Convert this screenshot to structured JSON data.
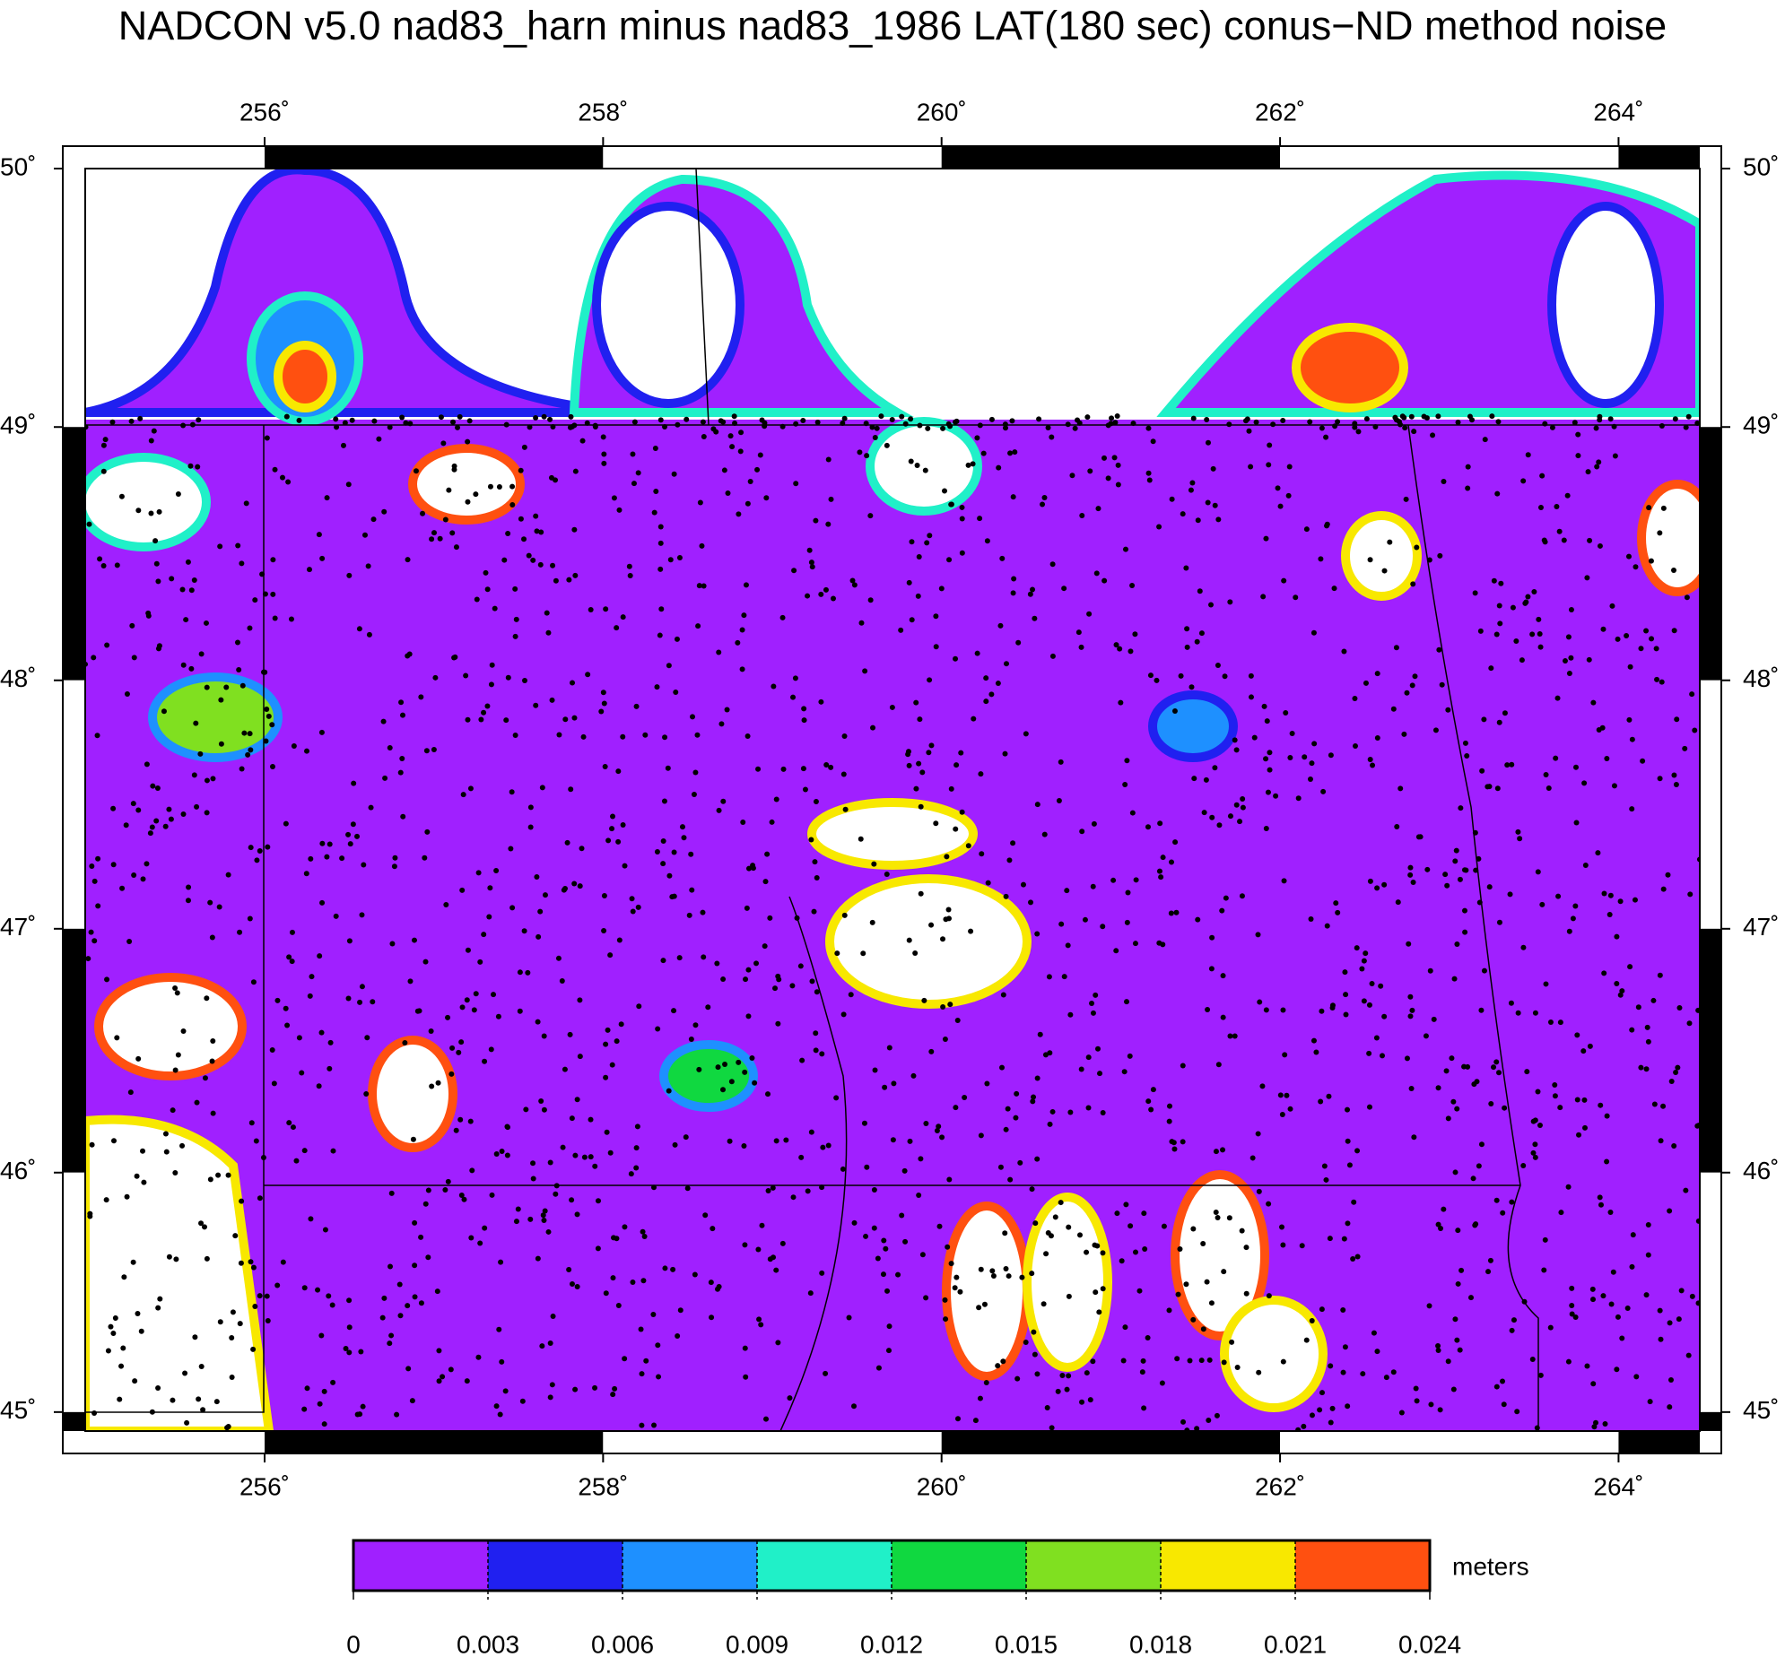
{
  "title": "NADCON v5.0 nad83_harn minus nad83_1986 LAT(180 sec) conus−ND method noise",
  "map": {
    "xlim": [
      254.94,
      264.48
    ],
    "ylim": [
      44.92,
      50.0
    ],
    "xticks": [
      {
        "value": 256,
        "label": "256˚"
      },
      {
        "value": 258,
        "label": "258˚"
      },
      {
        "value": 260,
        "label": "260˚"
      },
      {
        "value": 262,
        "label": "262˚"
      },
      {
        "value": 264,
        "label": "264˚"
      }
    ],
    "yticks": [
      {
        "value": 50,
        "label": "50˚"
      },
      {
        "value": 49,
        "label": "49˚"
      },
      {
        "value": 48,
        "label": "48˚"
      },
      {
        "value": 47,
        "label": "47˚"
      },
      {
        "value": 46,
        "label": "46˚"
      },
      {
        "value": 45,
        "label": "45˚"
      }
    ]
  },
  "colorbar": {
    "label": "meters",
    "colors": [
      "#a020ff",
      "#2020f0",
      "#1e90ff",
      "#20f0c8",
      "#10d840",
      "#80e020",
      "#f8e800",
      "#ff5010"
    ],
    "ticks": [
      0,
      0.003,
      0.006,
      0.009,
      0.012,
      0.015,
      0.018,
      0.021,
      0.024
    ]
  }
}
